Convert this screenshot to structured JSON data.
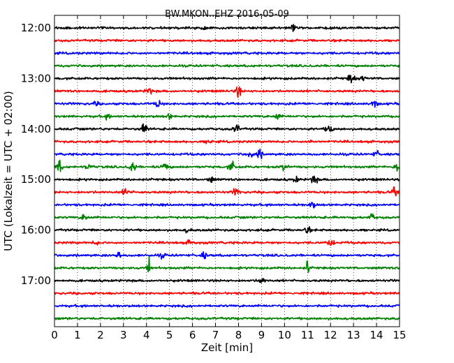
{
  "chart_data": {
    "type": "line",
    "title": "BW.MKON..EHZ 2016-05-09",
    "xlabel": "Zeit  [min]",
    "ylabel": "UTC (Lokalzeit = UTC + 02:00)",
    "xlim": [
      0,
      15
    ],
    "x_ticks": [
      "0",
      "1",
      "2",
      "3",
      "4",
      "5",
      "6",
      "7",
      "8",
      "9",
      "10",
      "11",
      "12",
      "13",
      "14",
      "15"
    ],
    "y_ticks": [
      "12:00",
      "13:00",
      "14:00",
      "15:00",
      "16:00",
      "17:00"
    ],
    "grid": "vertical dotted",
    "trace_interval_minutes": 15,
    "colors": [
      "#000000",
      "#ff0000",
      "#0000ff",
      "#008000"
    ],
    "traces": [
      {
        "start": "12:00",
        "color": "#000000",
        "events": [
          {
            "t": 10.4,
            "amp": 1.9
          },
          {
            "t": 6.5,
            "amp": 0.5
          }
        ]
      },
      {
        "start": "12:15",
        "color": "#ff0000",
        "events": []
      },
      {
        "start": "12:30",
        "color": "#0000ff",
        "events": []
      },
      {
        "start": "12:45",
        "color": "#008000",
        "events": []
      },
      {
        "start": "13:00",
        "color": "#000000",
        "events": [
          {
            "t": 12.9,
            "amp": 1.6
          },
          {
            "t": 13.4,
            "amp": 0.7
          }
        ]
      },
      {
        "start": "13:15",
        "color": "#ff0000",
        "events": [
          {
            "t": 8.0,
            "amp": 1.5
          },
          {
            "t": 4.1,
            "amp": 1.0
          }
        ]
      },
      {
        "start": "13:30",
        "color": "#0000ff",
        "events": [
          {
            "t": 4.5,
            "amp": 1.2
          },
          {
            "t": 13.9,
            "amp": 1.1
          },
          {
            "t": 1.8,
            "amp": 0.6
          }
        ]
      },
      {
        "start": "13:45",
        "color": "#008000",
        "events": [
          {
            "t": 9.7,
            "amp": 0.9
          },
          {
            "t": 5.0,
            "amp": 0.7
          },
          {
            "t": 2.3,
            "amp": 0.6
          }
        ]
      },
      {
        "start": "14:00",
        "color": "#000000",
        "events": [
          {
            "t": 3.9,
            "amp": 1.6
          },
          {
            "t": 7.9,
            "amp": 1.5
          },
          {
            "t": 11.9,
            "amp": 0.8
          },
          {
            "t": 12.0,
            "amp": 0.8
          }
        ]
      },
      {
        "start": "14:15",
        "color": "#ff0000",
        "events": [
          {
            "t": 6.7,
            "amp": 0.7
          },
          {
            "t": 11.2,
            "amp": 0.6
          }
        ]
      },
      {
        "start": "14:30",
        "color": "#0000ff",
        "events": [
          {
            "t": 8.9,
            "amp": 1.4
          },
          {
            "t": 8.5,
            "amp": 0.8
          },
          {
            "t": 14.0,
            "amp": 0.8
          }
        ]
      },
      {
        "start": "14:45",
        "color": "#008000",
        "events": [
          {
            "t": 0.2,
            "amp": 1.6
          },
          {
            "t": 3.4,
            "amp": 1.5
          },
          {
            "t": 4.8,
            "amp": 1.3
          },
          {
            "t": 7.7,
            "amp": 1.5
          },
          {
            "t": 10.0,
            "amp": 1.6
          },
          {
            "t": 14.9,
            "amp": 1.5
          },
          {
            "t": 1.5,
            "amp": 0.9
          }
        ]
      },
      {
        "start": "15:00",
        "color": "#000000",
        "events": [
          {
            "t": 11.3,
            "amp": 1.4
          },
          {
            "t": 6.8,
            "amp": 0.9
          },
          {
            "t": 10.5,
            "amp": 0.8
          }
        ]
      },
      {
        "start": "15:15",
        "color": "#ff0000",
        "events": [
          {
            "t": 3.1,
            "amp": 1.3
          },
          {
            "t": 7.9,
            "amp": 1.2
          },
          {
            "t": 14.8,
            "amp": 1.4
          }
        ]
      },
      {
        "start": "15:30",
        "color": "#0000ff",
        "events": [
          {
            "t": 11.2,
            "amp": 1.0
          }
        ]
      },
      {
        "start": "15:45",
        "color": "#008000",
        "events": [
          {
            "t": 1.3,
            "amp": 1.0
          },
          {
            "t": 13.8,
            "amp": 0.9
          }
        ]
      },
      {
        "start": "16:00",
        "color": "#000000",
        "events": [
          {
            "t": 11.0,
            "amp": 0.9
          },
          {
            "t": 5.8,
            "amp": 0.6
          }
        ]
      },
      {
        "start": "16:15",
        "color": "#ff0000",
        "events": [
          {
            "t": 12.0,
            "amp": 1.5
          },
          {
            "t": 5.9,
            "amp": 0.8
          },
          {
            "t": 1.8,
            "amp": 0.6
          }
        ]
      },
      {
        "start": "16:30",
        "color": "#0000ff",
        "events": [
          {
            "t": 2.8,
            "amp": 1.1
          },
          {
            "t": 6.5,
            "amp": 0.9
          },
          {
            "t": 4.7,
            "amp": 0.7
          }
        ]
      },
      {
        "start": "16:45",
        "color": "#008000",
        "events": [
          {
            "t": 4.1,
            "amp": 4.2
          },
          {
            "t": 11.0,
            "amp": 2.8
          }
        ]
      },
      {
        "start": "17:00",
        "color": "#000000",
        "events": [
          {
            "t": 9.0,
            "amp": 1.0
          }
        ]
      },
      {
        "start": "17:15",
        "color": "#ff0000",
        "events": []
      },
      {
        "start": "17:30",
        "color": "#0000ff",
        "events": []
      },
      {
        "start": "17:45",
        "color": "#008000",
        "events": []
      }
    ]
  }
}
